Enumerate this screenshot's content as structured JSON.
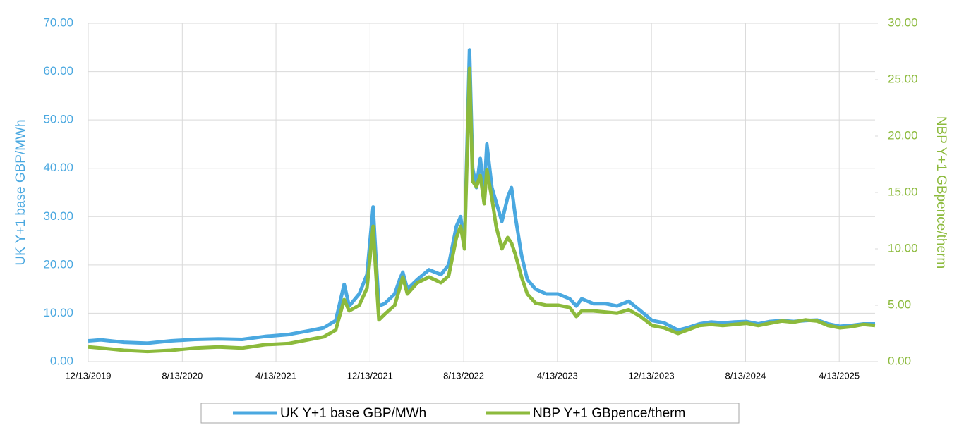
{
  "chart_data": {
    "type": "line",
    "y_label": "UK Y+1 base GBP/MWh",
    "y2_label": "NBP Y+1 GBpence/therm",
    "x": [
      "2019-12-13",
      "2020-01-15",
      "2020-03-15",
      "2020-05-15",
      "2020-07-15",
      "2020-09-15",
      "2020-11-15",
      "2021-01-15",
      "2021-03-15",
      "2021-05-15",
      "2021-07-15",
      "2021-08-15",
      "2021-09-15",
      "2021-10-07",
      "2021-10-20",
      "2021-11-15",
      "2021-12-05",
      "2021-12-21",
      "2021-12-28",
      "2022-01-05",
      "2022-01-20",
      "2022-02-15",
      "2022-02-28",
      "2022-03-08",
      "2022-03-20",
      "2022-04-15",
      "2022-05-15",
      "2022-06-15",
      "2022-07-05",
      "2022-07-25",
      "2022-08-05",
      "2022-08-15",
      "2022-08-28",
      "2022-09-05",
      "2022-09-15",
      "2022-09-25",
      "2022-10-05",
      "2022-10-12",
      "2022-10-25",
      "2022-11-05",
      "2022-11-20",
      "2022-12-05",
      "2022-12-15",
      "2022-12-25",
      "2023-01-10",
      "2023-01-25",
      "2023-02-15",
      "2023-03-15",
      "2023-04-15",
      "2023-05-15",
      "2023-06-01",
      "2023-06-15",
      "2023-07-15",
      "2023-08-15",
      "2023-09-15",
      "2023-10-15",
      "2023-11-15",
      "2023-12-15",
      "2024-01-15",
      "2024-02-20",
      "2024-03-15",
      "2024-04-15",
      "2024-05-15",
      "2024-06-15",
      "2024-07-15",
      "2024-08-15",
      "2024-09-15",
      "2024-10-15",
      "2024-11-15",
      "2024-12-15",
      "2025-01-15",
      "2025-02-15",
      "2025-03-15",
      "2025-04-15",
      "2025-05-15",
      "2025-06-15",
      "2025-07-15"
    ],
    "series": [
      {
        "name": "UK Y+1 base GBP/MWh",
        "color": "#4aa8e0",
        "axis": "y",
        "values": [
          4.3,
          4.5,
          4.0,
          3.8,
          4.3,
          4.6,
          4.7,
          4.6,
          5.2,
          5.6,
          6.5,
          7.0,
          8.5,
          16.0,
          11.5,
          14.0,
          18.0,
          32.0,
          22.0,
          11.5,
          12.0,
          14.0,
          17.0,
          18.5,
          15.0,
          17.0,
          19.0,
          18.0,
          20.0,
          28.0,
          30.0,
          24.0,
          64.5,
          40.0,
          36.0,
          42.0,
          35.0,
          45.0,
          36.0,
          33.0,
          29.0,
          34.0,
          36.0,
          30.0,
          22.0,
          17.0,
          15.0,
          14.0,
          14.0,
          13.0,
          11.5,
          13.0,
          12.0,
          12.0,
          11.5,
          12.5,
          10.5,
          8.5,
          8.0,
          6.5,
          7.0,
          7.8,
          8.2,
          8.0,
          8.2,
          8.3,
          7.8,
          8.3,
          8.5,
          8.3,
          8.5,
          8.6,
          7.8,
          7.3,
          7.5,
          7.8,
          7.8
        ]
      },
      {
        "name": "NBP Y+1 GBpence/therm",
        "color": "#8cba3c",
        "axis": "y2",
        "values": [
          1.3,
          1.2,
          1.0,
          0.9,
          1.0,
          1.2,
          1.3,
          1.2,
          1.5,
          1.6,
          2.0,
          2.2,
          2.8,
          5.5,
          4.5,
          5.0,
          6.5,
          12.0,
          8.0,
          3.7,
          4.2,
          5.0,
          6.5,
          7.5,
          6.0,
          7.0,
          7.5,
          7.0,
          7.6,
          11.0,
          12.0,
          10.0,
          26.0,
          16.0,
          15.5,
          16.5,
          14.0,
          17.0,
          14.5,
          12.0,
          10.0,
          11.0,
          10.5,
          9.5,
          7.5,
          6.0,
          5.2,
          5.0,
          5.0,
          4.8,
          4.0,
          4.5,
          4.5,
          4.4,
          4.3,
          4.6,
          4.0,
          3.2,
          3.0,
          2.5,
          2.8,
          3.2,
          3.3,
          3.2,
          3.3,
          3.4,
          3.2,
          3.4,
          3.6,
          3.5,
          3.7,
          3.6,
          3.2,
          3.0,
          3.1,
          3.3,
          3.2
        ]
      }
    ],
    "xlim": [
      "2019-12-13",
      "2025-07-15"
    ],
    "xticks": [
      {
        "value": "2019-12-13",
        "label": "12/13/2019"
      },
      {
        "value": "2020-08-13",
        "label": "8/13/2020"
      },
      {
        "value": "2021-04-13",
        "label": "4/13/2021"
      },
      {
        "value": "2021-12-13",
        "label": "12/13/2021"
      },
      {
        "value": "2022-08-13",
        "label": "8/13/2022"
      },
      {
        "value": "2023-04-13",
        "label": "4/13/2023"
      },
      {
        "value": "2023-12-13",
        "label": "12/13/2023"
      },
      {
        "value": "2024-08-13",
        "label": "8/13/2024"
      },
      {
        "value": "2025-04-13",
        "label": "4/13/2025"
      }
    ],
    "ylim": [
      0,
      70
    ],
    "yticks": [
      {
        "value": 0,
        "label": "0.00"
      },
      {
        "value": 10,
        "label": "10.00"
      },
      {
        "value": 20,
        "label": "20.00"
      },
      {
        "value": 30,
        "label": "30.00"
      },
      {
        "value": 40,
        "label": "40.00"
      },
      {
        "value": 50,
        "label": "50.00"
      },
      {
        "value": 60,
        "label": "60.00"
      },
      {
        "value": 70,
        "label": "70.00"
      }
    ],
    "y2lim": [
      0,
      30
    ],
    "y2ticks": [
      {
        "value": 0,
        "label": "0.00"
      },
      {
        "value": 5,
        "label": "5.00"
      },
      {
        "value": 10,
        "label": "10.00"
      },
      {
        "value": 15,
        "label": "15.00"
      },
      {
        "value": 20,
        "label": "20.00"
      },
      {
        "value": 25,
        "label": "25.00"
      },
      {
        "value": 30,
        "label": "30.00"
      }
    ],
    "grid": true,
    "legend": "bottom"
  }
}
